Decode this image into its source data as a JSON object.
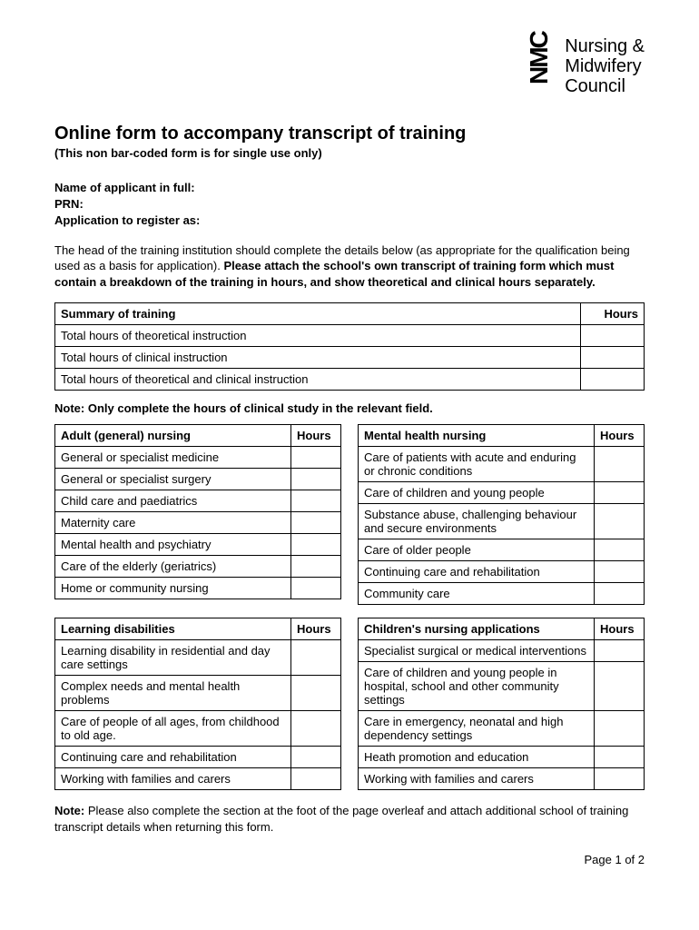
{
  "logo": {
    "mark": "NMC",
    "line1": "Nursing &",
    "line2": "Midwifery",
    "line3": "Council"
  },
  "title": "Online form to accompany transcript of training",
  "subtitle": "(This non bar-coded form is for single use only)",
  "fields": {
    "applicant": "Name of applicant in full:",
    "prn": "PRN:",
    "register": "Application to register as:"
  },
  "intro": {
    "p1": "The head of the training institution should complete the details below (as appropriate for the qualification being used as a basis for application). ",
    "p1bold": "Please attach the school's own transcript of training form which must contain a breakdown of the training in hours, and show theoretical and clinical hours separately."
  },
  "summary": {
    "header_left": "Summary of training",
    "header_right": "Hours",
    "rows": [
      "Total hours of theoretical instruction",
      "Total hours of clinical instruction",
      "Total hours of theoretical and clinical instruction"
    ]
  },
  "note_between": "Note: Only complete the hours of clinical study in the relevant field.",
  "block1": {
    "left": {
      "header": "Adult (general) nursing",
      "hours": "Hours",
      "rows": [
        "General or specialist medicine",
        "General or specialist surgery",
        "Child care and paediatrics",
        "Maternity care",
        "Mental health and psychiatry",
        "Care of the elderly (geriatrics)",
        "Home or community nursing"
      ]
    },
    "right": {
      "header": "Mental health nursing",
      "hours": "Hours",
      "rows": [
        "Care of patients with acute and enduring or chronic conditions",
        "Care of children and young people",
        "Substance abuse, challenging behaviour and secure environments",
        "Care of older people",
        "Continuing care and rehabilitation",
        "Community care"
      ]
    }
  },
  "block2": {
    "left": {
      "header": "Learning disabilities",
      "hours": "Hours",
      "rows": [
        "Learning disability in residential and day care settings",
        "Complex needs and mental health problems",
        "Care of people of all ages, from childhood to old age.",
        "Continuing care and rehabilitation",
        "Working with families and carers"
      ]
    },
    "right": {
      "header": "Children's nursing applications",
      "hours": "Hours",
      "rows": [
        "Specialist surgical or medical interventions",
        "Care of children and young people in hospital, school and other community settings",
        "Care in emergency, neonatal and high dependency settings",
        "Heath promotion and education",
        "Working with families and carers"
      ]
    }
  },
  "footer_note": {
    "bold": "Note: ",
    "text": "Please also complete the section at the foot of the page overleaf and attach additional school of training transcript details when returning this form."
  },
  "page": "Page 1 of 2"
}
